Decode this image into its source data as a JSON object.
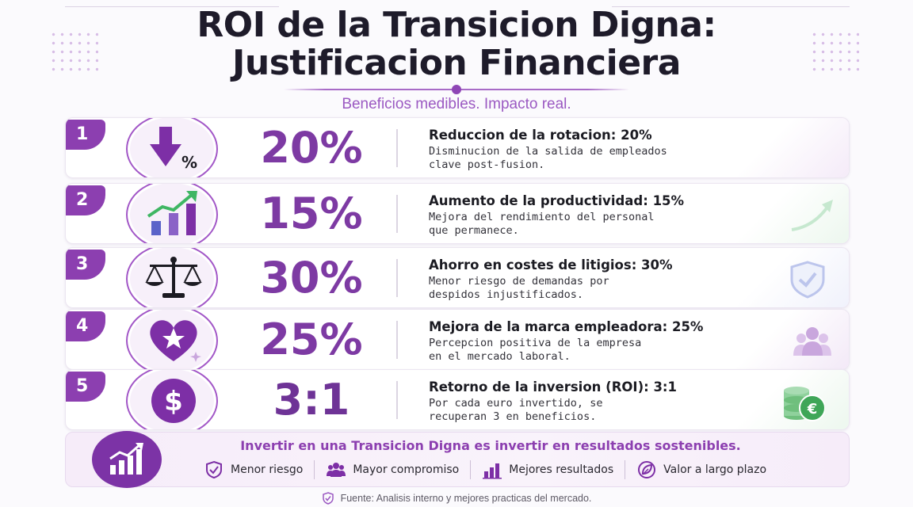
{
  "header": {
    "title_line1": "ROI de la Transicion Digna:",
    "title_line2": "Justificacion Financiera",
    "subtitle": "Beneficios medibles. Impacto real."
  },
  "colors": {
    "accent": "#8c3fb0",
    "value": "#7d3aa3",
    "banner_icon": "#7c33a6",
    "growth_arrow": "#3fb663",
    "bars": "#5a63c9"
  },
  "rows": [
    {
      "number": "1",
      "value": "20%",
      "title": "Reduccion de la rotacion: 20%",
      "desc1": "Disminucion de la salida de empleados",
      "desc2": "clave post-fusion.",
      "icon": "down-arrow-percent-icon",
      "side_icon": "none"
    },
    {
      "number": "2",
      "value": "15%",
      "title": "Aumento de la productividad: 15%",
      "desc1": "Mejora del rendimiento del personal",
      "desc2": "que permanece.",
      "icon": "growth-chart-icon",
      "side_icon": "trend-arrow-icon"
    },
    {
      "number": "3",
      "value": "30%",
      "title": "Ahorro en costes de litigios: 30%",
      "desc1": "Menor riesgo de demandas por",
      "desc2": "despidos injustificados.",
      "icon": "balance-scale-icon",
      "side_icon": "shield-check-icon"
    },
    {
      "number": "4",
      "value": "25%",
      "title": "Mejora de la marca empleadora: 25%",
      "desc1": "Percepcion positiva de la empresa",
      "desc2": "en el mercado laboral.",
      "icon": "heart-star-icon",
      "side_icon": "people-group-icon"
    },
    {
      "number": "5",
      "value": "3:1",
      "title": "Retorno de la inversion (ROI): 3:1",
      "desc1": "Por cada euro invertido, se",
      "desc2": "recuperan 3 en beneficios.",
      "icon": "dollar-coin-icon",
      "side_icon": "euro-coins-icon"
    }
  ],
  "banner": {
    "headline": "Invertir en una Transicion Digna es invertir en resultados sostenibles.",
    "items": [
      {
        "label": "Menor riesgo",
        "icon": "shield-check-icon"
      },
      {
        "label": "Mayor compromiso",
        "icon": "people-icon"
      },
      {
        "label": "Mejores resultados",
        "icon": "bar-chart-icon"
      },
      {
        "label": "Valor a largo plazo",
        "icon": "leaf-icon"
      }
    ]
  },
  "footer": {
    "source": "Fuente: Analisis interno y mejores practicas del mercado."
  }
}
